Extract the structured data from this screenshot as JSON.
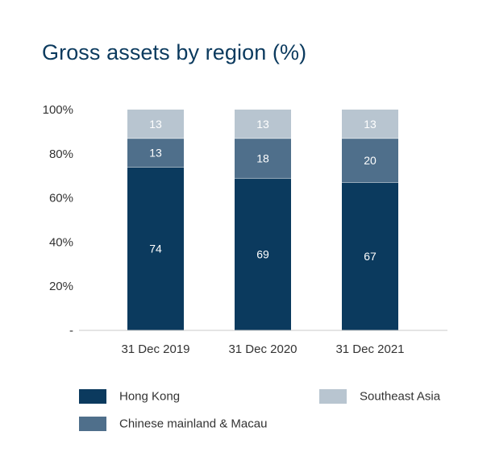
{
  "chart_data": {
    "type": "bar",
    "stacked": true,
    "title": "Gross assets by region (%)",
    "categories": [
      "31 Dec 2019",
      "31 Dec 2020",
      "31 Dec 2021"
    ],
    "series": [
      {
        "name": "Hong Kong",
        "values": [
          74,
          69,
          67
        ],
        "color": "#0b3a5e",
        "label_color": "#ffffff"
      },
      {
        "name": "Chinese mainland & Macau",
        "values": [
          13,
          18,
          20
        ],
        "color": "#4f6f8b",
        "label_color": "#ffffff"
      },
      {
        "name": "Southeast Asia",
        "values": [
          13,
          13,
          13
        ],
        "color": "#b8c5d0",
        "label_color": "#ffffff"
      }
    ],
    "y_ticks": [
      {
        "value": 0,
        "label": "-"
      },
      {
        "value": 20,
        "label": "20%"
      },
      {
        "value": 40,
        "label": "40%"
      },
      {
        "value": 60,
        "label": "60%"
      },
      {
        "value": 80,
        "label": "80%"
      },
      {
        "value": 100,
        "label": "100%"
      }
    ],
    "ylim": [
      0,
      100
    ],
    "xlabel": "",
    "ylabel": "",
    "legend_position": "bottom"
  },
  "colors": {
    "title": "#0b3a5e",
    "axis": "#c8c8c8"
  }
}
